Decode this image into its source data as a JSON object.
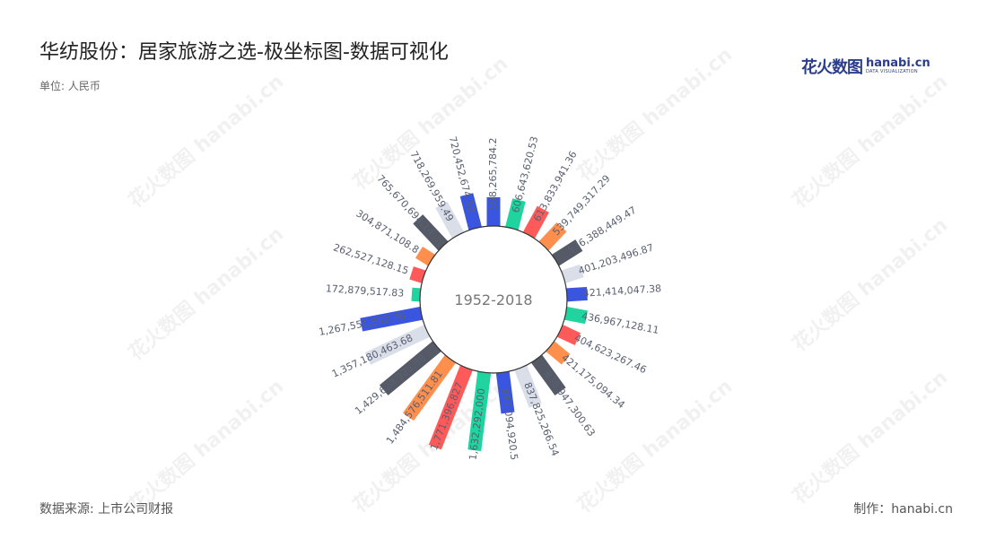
{
  "header": {
    "title": "华纺股份：居家旅游之选-极坐标图-数据可视化",
    "unit": "单位: 人民币"
  },
  "logo": {
    "cn": "花火数图",
    "en": "hanabi.cn",
    "tagline": "DATA VISUALIZATION"
  },
  "footer": {
    "source": "数据来源: 上市公司财报",
    "credit": "制作：hanabi.cn"
  },
  "watermark": "花火数图 hanabi.cn",
  "chart_data": {
    "type": "bar",
    "subtype": "polar-radial-bar",
    "center_label": "1952-2018",
    "colors": [
      "#3a56e0",
      "#1fd49e",
      "#ff5a5a",
      "#ff8f4d",
      "#555a66",
      "#d9dee8"
    ],
    "categories": [],
    "values": [
      598265784.2,
      606643620.53,
      613833941.36,
      539749317.29,
      576388449.47,
      401203496.87,
      421414047.38,
      436967128.11,
      404623267.46,
      421175094.34,
      835947300.63,
      837825266.54,
      847094920.5,
      1632292000,
      1771396827,
      1484576511.81,
      1429628925.88,
      1357180463.68,
      1267551832.76,
      172879517.83,
      262527128.15,
      304871108.8,
      765670694.14,
      718269959.49,
      720452674.52
    ],
    "labels": [
      "598,265,784.2",
      "606,643,620.53",
      "613,833,941.36",
      "539,749,317.29",
      "576,388,449.47",
      "401,203,496.87",
      "421,414,047.38",
      "436,967,128.11",
      "404,623,267.46",
      "421,175,094.34",
      "835,947,300.63",
      "837,825,266.54",
      "847,094,920.5",
      "1,632,292,000",
      "1,771,396,827",
      "1,484,576,511.81",
      "1,429,628,925.88",
      "1,357,180,463.68",
      "1,267,551,832.76",
      "172,879,517.83",
      "262,527,128.15",
      "304,871,108.8",
      "765,670,694.14",
      "718,269,959.49",
      "720,452,674.52"
    ]
  }
}
